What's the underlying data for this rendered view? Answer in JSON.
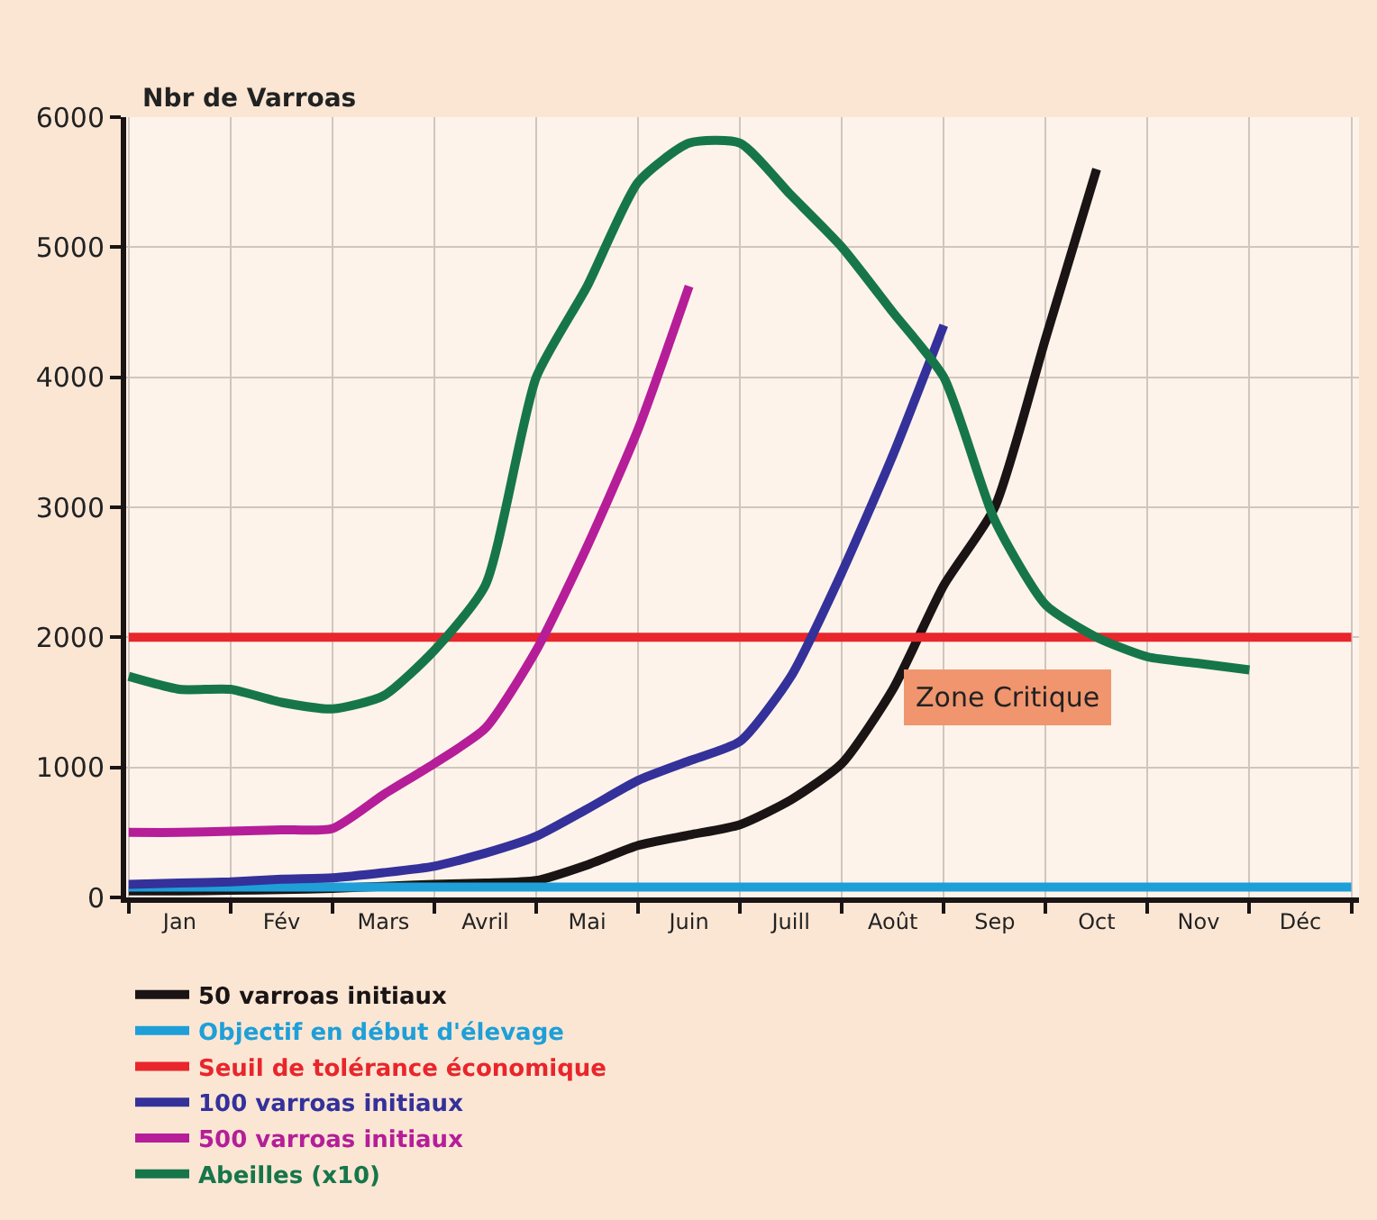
{
  "chart_data": {
    "type": "line",
    "ylabel": "Nbr de Varroas",
    "categories": [
      null,
      "Jan",
      null,
      "Fév",
      null,
      "Mars",
      null,
      "Avril",
      null,
      "Mai",
      null,
      "Juin",
      null,
      "Juill",
      null,
      "Août",
      null,
      "Sep",
      null,
      "Oct",
      null,
      "Nov",
      null,
      "Déc",
      null
    ],
    "series": [
      {
        "name": "50 varroas initiaux",
        "color": "#1a1414",
        "values": [
          50,
          50,
          55,
          60,
          70,
          85,
          100,
          110,
          130,
          250,
          400,
          480,
          560,
          750,
          1030,
          1600,
          2400,
          3000,
          4300,
          5600,
          null,
          null,
          null,
          null,
          null
        ]
      },
      {
        "name": "Objectif en début d'élevage",
        "color": "#1e9fd8",
        "values": [
          80,
          80,
          80,
          80,
          80,
          80,
          80,
          80,
          80,
          80,
          80,
          80,
          80,
          80,
          80,
          80,
          80,
          80,
          80,
          80,
          80,
          80,
          80,
          80,
          80
        ]
      },
      {
        "name": "Seuil de tolérance économique",
        "color": "#e8262b",
        "values": [
          2000,
          2000,
          2000,
          2000,
          2000,
          2000,
          2000,
          2000,
          2000,
          2000,
          2000,
          2000,
          2000,
          2000,
          2000,
          2000,
          2000,
          2000,
          2000,
          2000,
          2000,
          2000,
          2000,
          2000,
          2000
        ]
      },
      {
        "name": "100 varroas initiaux",
        "color": "#34319a",
        "values": [
          100,
          110,
          120,
          140,
          150,
          190,
          240,
          340,
          470,
          680,
          900,
          1050,
          1200,
          1700,
          2500,
          3400,
          4400,
          null,
          null,
          null,
          null,
          null,
          null,
          null,
          null
        ]
      },
      {
        "name": "500 varroas initiaux",
        "color": "#b51e98",
        "values": [
          500,
          500,
          510,
          520,
          530,
          790,
          1030,
          1300,
          1900,
          2700,
          3600,
          4700,
          null,
          null,
          null,
          null,
          null,
          null,
          null,
          null,
          null,
          null,
          null,
          null,
          null
        ]
      },
      {
        "name": "Abeilles (x10)",
        "color": "#16764a",
        "values": [
          1700,
          1600,
          1600,
          1500,
          1450,
          1550,
          1900,
          2400,
          4000,
          4700,
          5500,
          5800,
          5800,
          5400,
          5000,
          4500,
          4000,
          2900,
          2250,
          2000,
          1850,
          1800,
          1750,
          null,
          null
        ]
      }
    ],
    "ylim": [
      0,
      6000
    ],
    "yticks": [
      0,
      1000,
      2000,
      3000,
      4000,
      5000,
      6000
    ],
    "grid": true,
    "legend": "bottom",
    "marker": "none",
    "line_style": "solid",
    "annotations": [
      "Zone Critique"
    ]
  }
}
